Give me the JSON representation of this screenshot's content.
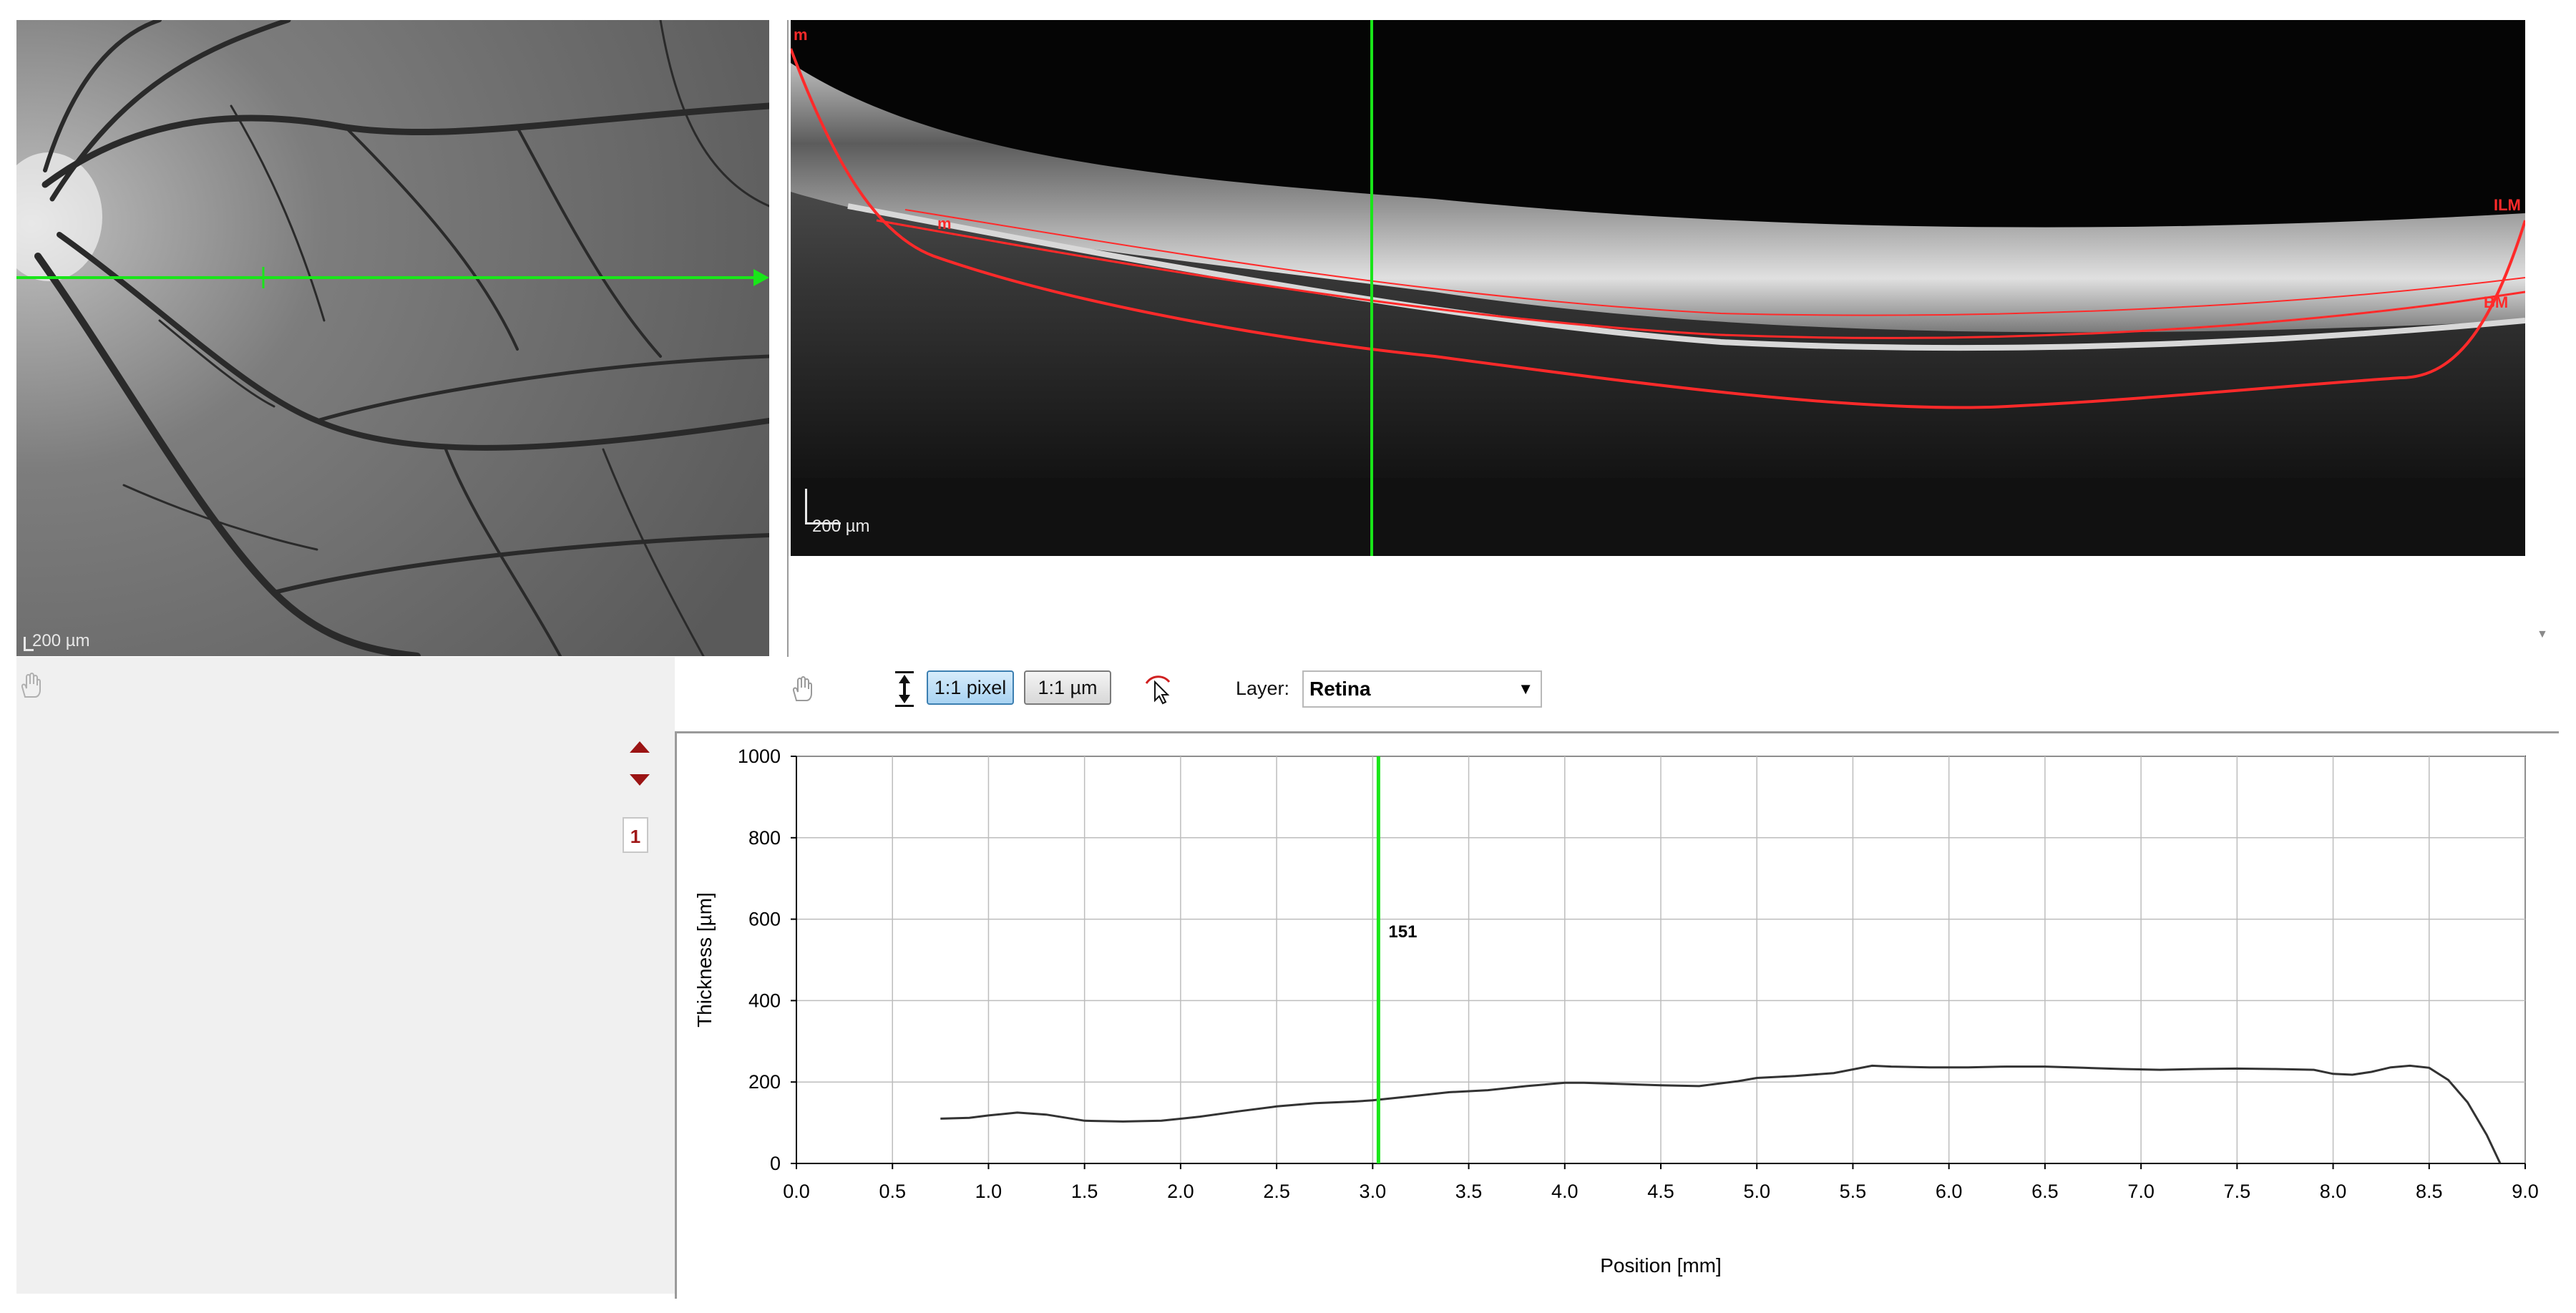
{
  "fundus": {
    "scale_label": "200 µm",
    "scan_line_color": "#19e619"
  },
  "oct": {
    "scale_label": "200 µm",
    "layer_tags": {
      "top_left": "m",
      "inner_left": "m",
      "ilm": "ILM",
      "bm": "BM"
    },
    "segmentation_color": "#ff2a2a",
    "cursor_color": "#19e619"
  },
  "toolbar": {
    "pan_icon": "hand-icon",
    "scale_icon": "vertical-stretch-icon",
    "btn_pixel_label": "1:1 pixel",
    "btn_um_label": "1:1 µm",
    "edit_icon": "segmentation-edit-icon",
    "layer_label": "Layer:",
    "layer_value": "Retina"
  },
  "side_controls": {
    "series_number": "1",
    "up_icon": "triangle-up-icon",
    "down_icon": "triangle-down-icon"
  },
  "chart_data": {
    "type": "line",
    "xlabel": "Position [mm]",
    "ylabel": "Thickness [µm]",
    "xlim": [
      0,
      9
    ],
    "ylim": [
      0,
      1000
    ],
    "x_ticks": [
      "0.0",
      "0.5",
      "1.0",
      "1.5",
      "2.0",
      "2.5",
      "3.0",
      "3.5",
      "4.0",
      "4.5",
      "5.0",
      "5.5",
      "6.0",
      "6.5",
      "7.0",
      "7.5",
      "8.0",
      "8.5",
      "9.0"
    ],
    "y_ticks": [
      "0",
      "200",
      "400",
      "600",
      "800",
      "1000"
    ],
    "grid": true,
    "cursor": {
      "x": 3.03,
      "label": "151",
      "color": "#19e619"
    },
    "series": [
      {
        "x": [
          0.75,
          0.9,
          1.0,
          1.15,
          1.3,
          1.5,
          1.7,
          1.9,
          2.1,
          2.3,
          2.5,
          2.7,
          2.9,
          3.0,
          3.2,
          3.4,
          3.6,
          3.8,
          4.0,
          4.1,
          4.3,
          4.5,
          4.7,
          4.9,
          5.0,
          5.2,
          5.4,
          5.6,
          5.7,
          5.9,
          6.1,
          6.3,
          6.5,
          6.7,
          6.9,
          7.1,
          7.3,
          7.5,
          7.7,
          7.9,
          8.0,
          8.1,
          8.2,
          8.3,
          8.4,
          8.5,
          8.6,
          8.7,
          8.8,
          8.87
        ],
        "y": [
          110,
          112,
          118,
          125,
          120,
          105,
          103,
          105,
          115,
          128,
          140,
          148,
          152,
          155,
          165,
          175,
          180,
          190,
          198,
          198,
          195,
          192,
          190,
          202,
          210,
          215,
          222,
          240,
          238,
          236,
          236,
          238,
          238,
          235,
          232,
          230,
          232,
          233,
          232,
          230,
          220,
          218,
          225,
          236,
          240,
          235,
          205,
          150,
          70,
          0
        ]
      }
    ]
  }
}
